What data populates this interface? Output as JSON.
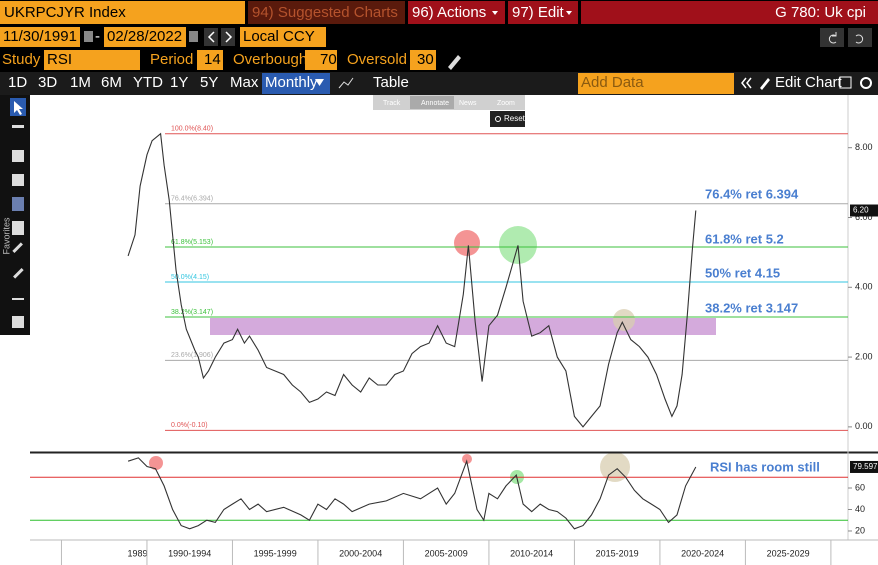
{
  "toolbar": {
    "ticker": "UKRPCJYR Index",
    "suggested": "94) Suggested Charts",
    "actions": "96) Actions",
    "edit": "97) Edit",
    "page_title": "G 780: Uk cpi",
    "start_date": "11/30/1991",
    "end_date": "02/28/2022",
    "currency": "Local CCY",
    "study_label": "Study",
    "study": "RSI",
    "period_label": "Period",
    "period": 14,
    "overbought_label": "Overbought",
    "overbought": 70,
    "oversold_label": "Oversold",
    "oversold": 30,
    "ranges": [
      "1D",
      "3D",
      "1M",
      "6M",
      "YTD",
      "1Y",
      "5Y",
      "Max"
    ],
    "frequency": "Monthly",
    "table": "Table",
    "add_data": "Add Data",
    "edit_chart": "Edit Chart"
  },
  "chart_tools": [
    "Track",
    "Annotate",
    "News",
    "Zoom"
  ],
  "reset": "Reset",
  "sidebar_label": "Favorites",
  "chart_data": [
    {
      "type": "line",
      "color": "#333333",
      "xlim": [
        1983.16,
        2031
      ],
      "ylim": [
        -0.72,
        9.51
      ],
      "yticks": [
        {
          "value": 0,
          "label": "0.00"
        },
        {
          "value": 2,
          "label": "2.00"
        },
        {
          "value": 4,
          "label": "4.00"
        },
        {
          "value": 6,
          "label": "6.00"
        },
        {
          "value": 8,
          "label": "8.00"
        }
      ],
      "xticks": [
        {
          "value": 1985,
          "label": "1989"
        },
        {
          "value": 1990,
          "label": "1990-1994"
        },
        {
          "value": 1995,
          "label": "1995-1999"
        },
        {
          "value": 2000,
          "label": "2000-2004"
        },
        {
          "value": 2005,
          "label": "2005-2009"
        },
        {
          "value": 2010,
          "label": "2010-2014"
        },
        {
          "value": 2015,
          "label": "2015-2019"
        },
        {
          "value": 2020,
          "label": "2020-2024"
        },
        {
          "value": 2025,
          "label": "2025-2029"
        },
        {
          "value": 2030,
          "label": null
        }
      ],
      "x": [
        1988.9,
        1989.3,
        1989.6,
        1990.0,
        1990.3,
        1990.8,
        1991.0,
        1991.3,
        1991.7,
        1992.0,
        1992.3,
        1992.8,
        1993.0,
        1993.3,
        1993.6,
        1994.0,
        1994.5,
        1995.0,
        1995.3,
        1995.7,
        1996.0,
        1996.5,
        1997.0,
        1997.5,
        1998.0,
        1998.5,
        1999.0,
        1999.5,
        2000.0,
        2000.5,
        2001.0,
        2001.5,
        2002.0,
        2002.5,
        2003.0,
        2003.5,
        2004.0,
        2004.5,
        2005.0,
        2005.5,
        2006.0,
        2006.5,
        2007.0,
        2007.5,
        2008.0,
        2008.5,
        2008.8,
        2009.2,
        2009.6,
        2010.0,
        2010.5,
        2011.0,
        2011.7,
        2012.0,
        2012.5,
        2013.0,
        2013.5,
        2014.0,
        2014.5,
        2015.0,
        2015.5,
        2016.0,
        2016.5,
        2017.0,
        2017.5,
        2017.8,
        2018.3,
        2018.8,
        2019.3,
        2019.8,
        2020.3,
        2020.7,
        2021.0,
        2021.3,
        2021.6,
        2021.9,
        2022.1
      ],
      "values": [
        4.9,
        5.5,
        6.9,
        7.8,
        8.2,
        8.4,
        7.5,
        6.5,
        4.5,
        3.5,
        2.8,
        2.2,
        2.0,
        1.4,
        1.6,
        2.0,
        2.4,
        2.5,
        2.8,
        2.4,
        2.6,
        2.2,
        1.7,
        1.6,
        1.5,
        1.2,
        1.0,
        0.7,
        0.8,
        1.0,
        0.9,
        1.5,
        1.2,
        1.0,
        1.4,
        1.2,
        1.2,
        1.5,
        1.6,
        2.1,
        2.3,
        2.4,
        2.9,
        2.4,
        2.3,
        3.8,
        5.2,
        3.0,
        1.3,
        2.9,
        3.2,
        4.0,
        5.2,
        3.6,
        2.6,
        2.7,
        2.9,
        2.0,
        1.6,
        0.3,
        0.0,
        0.3,
        0.6,
        1.8,
        2.7,
        3.0,
        2.5,
        2.3,
        2.0,
        1.5,
        0.8,
        0.3,
        0.6,
        1.5,
        3.2,
        5.1,
        6.2
      ],
      "last_label": "6.20",
      "levels": [
        {
          "value": 8.4,
          "label": "100.0%(8.40)",
          "color": "#e05555"
        },
        {
          "value": 6.394,
          "label": "76.4%(6.394)",
          "color": "#aaaaaa"
        },
        {
          "value": 5.153,
          "label": "61.8%(5.153)",
          "color": "#3cc23c"
        },
        {
          "value": 4.15,
          "label": "50.0%(4.15)",
          "color": "#33c6e0"
        },
        {
          "value": 3.147,
          "label": "38.2%(3.147)",
          "color": "#3cc23c"
        },
        {
          "value": 1.906,
          "label": "23.6%(1.906)",
          "color": "#aaaaaa"
        },
        {
          "value": -0.1,
          "label": "0.0%(-0.10)",
          "color": "#e05555"
        }
      ],
      "annotations": [
        "76.4% ret 6.394",
        "61.8% ret 5.2",
        "50% ret 4.15",
        "38.2% ret 3.147"
      ]
    },
    {
      "type": "line",
      "color": "#333333",
      "xlim": [
        1983.16,
        2031
      ],
      "ylim": [
        11.6,
        92.6
      ],
      "yticks": [
        20,
        40,
        60
      ],
      "x": [
        1988.9,
        1989.5,
        1990.0,
        1990.5,
        1991.0,
        1991.5,
        1992.0,
        1992.5,
        1993.0,
        1993.5,
        1994.0,
        1994.5,
        1995.0,
        1995.5,
        1996.0,
        1996.5,
        1997.0,
        1998.0,
        1999.0,
        1999.5,
        2000.0,
        2000.5,
        2001.0,
        2001.5,
        2002.0,
        2003.0,
        2004.0,
        2005.0,
        2006.0,
        2007.0,
        2007.5,
        2008.0,
        2008.7,
        2009.3,
        2009.7,
        2010.0,
        2010.5,
        2011.0,
        2011.6,
        2012.0,
        2012.5,
        2013.0,
        2013.5,
        2014.0,
        2014.5,
        2015.0,
        2015.5,
        2016.0,
        2016.5,
        2017.0,
        2017.5,
        2018.0,
        2018.5,
        2019.0,
        2019.5,
        2020.0,
        2020.5,
        2021.0,
        2021.5,
        2022.1
      ],
      "values": [
        85,
        88,
        80,
        78,
        62,
        40,
        25,
        22,
        25,
        30,
        28,
        40,
        45,
        50,
        40,
        45,
        38,
        42,
        35,
        30,
        45,
        40,
        50,
        45,
        38,
        45,
        48,
        55,
        50,
        60,
        45,
        55,
        85,
        40,
        30,
        55,
        50,
        62,
        72,
        45,
        38,
        45,
        40,
        38,
        32,
        22,
        25,
        35,
        50,
        72,
        78,
        70,
        58,
        50,
        45,
        40,
        28,
        35,
        62,
        79.597
      ],
      "last_label": "79.597",
      "annotation": "RSI has room still"
    }
  ]
}
